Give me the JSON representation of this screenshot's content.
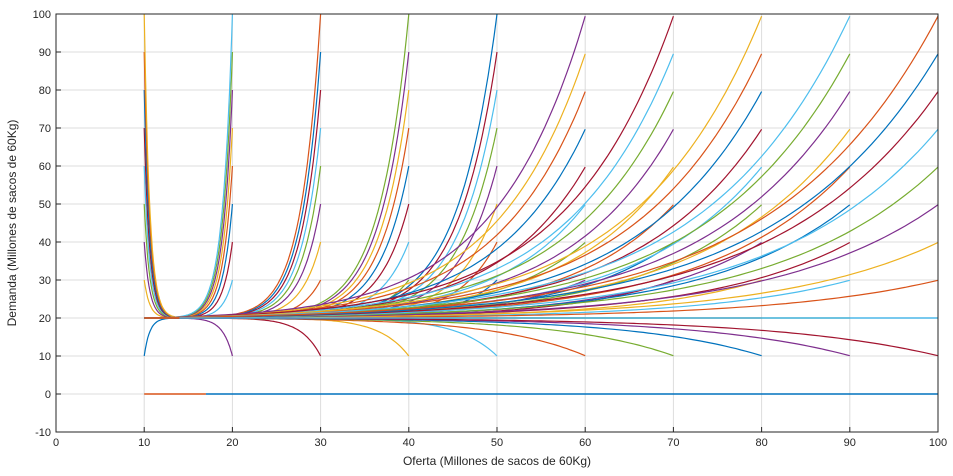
{
  "chart_data": {
    "type": "line",
    "title": "",
    "xlabel": "Oferta (Millones de sacos de 60Kg)",
    "ylabel": "Demanda (Millones de sacos de 60Kg)",
    "xlim": [
      0,
      100
    ],
    "ylim": [
      -10,
      100
    ],
    "xticks": [
      "0",
      "10",
      "20",
      "30",
      "40",
      "50",
      "60",
      "70",
      "80",
      "90",
      "100"
    ],
    "yticks": [
      "-10",
      "0",
      "10",
      "20",
      "30",
      "40",
      "50",
      "60",
      "70",
      "80",
      "90",
      "100"
    ],
    "grid": true,
    "legend": "none",
    "equilibrium_demand": 20,
    "supply_start": 10,
    "supply_endpoints": [
      10,
      20,
      30,
      40,
      50,
      60,
      70,
      80,
      90,
      100
    ],
    "initial_demand_values": [
      10,
      20,
      30,
      40,
      50,
      60,
      70,
      80,
      90,
      100
    ],
    "zero_line": {
      "x": [
        10,
        100
      ],
      "y": [
        0,
        0
      ]
    },
    "colors": [
      "#0072BD",
      "#D95319",
      "#EDB120",
      "#7E2F8E",
      "#77AC30",
      "#4DBEEE",
      "#A2142F"
    ]
  }
}
